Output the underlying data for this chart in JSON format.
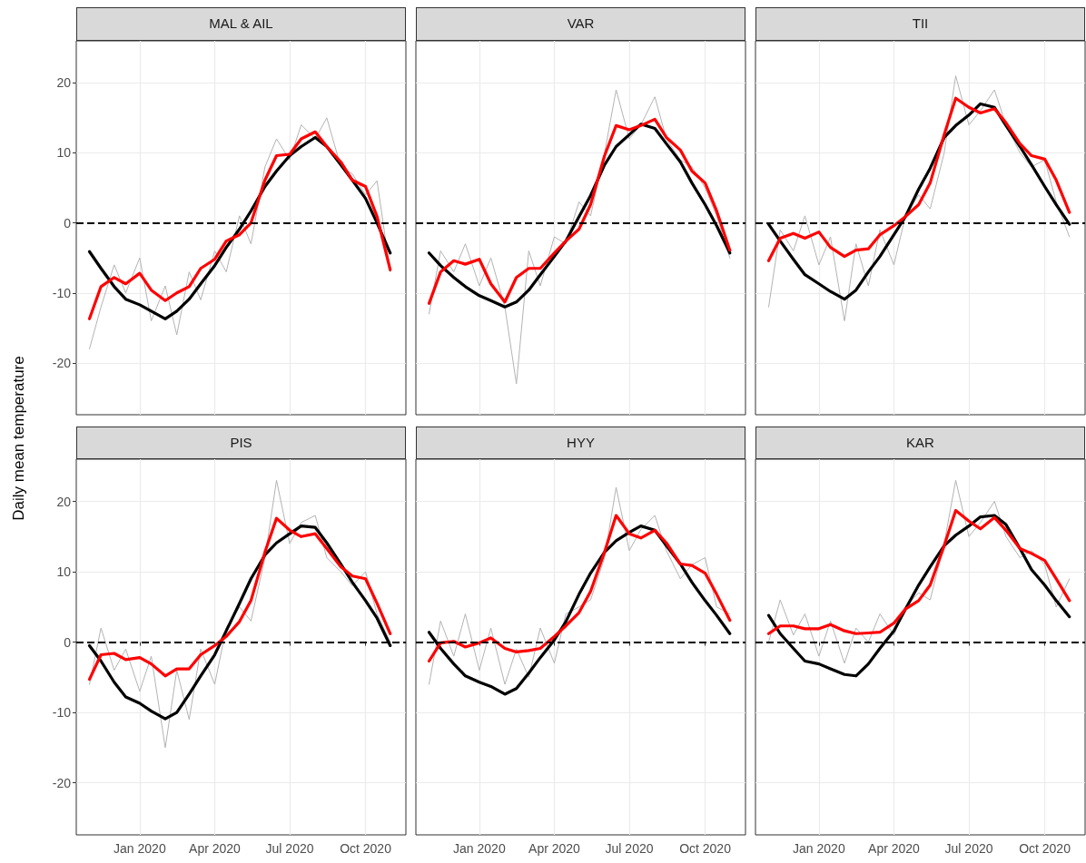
{
  "chart_data": [
    {
      "type": "line",
      "title": "MAL & AIL",
      "ylabel": "Daily mean temperature",
      "tick_labels": "y",
      "grid": true,
      "marker": "none",
      "line_style": "solid",
      "xlim": [
        "2019-10-16",
        "2020-11-19"
      ],
      "xticks": [
        {
          "value": "2020-01-01",
          "label": null
        },
        {
          "value": "2020-04-01",
          "label": null
        },
        {
          "value": "2020-07-01",
          "label": null
        },
        {
          "value": "2020-10-01",
          "label": null
        }
      ],
      "ylim": [
        -27.4,
        26
      ],
      "yticks": [
        -20,
        -10,
        0,
        10,
        20
      ],
      "ref_lines": [
        {
          "axis": "y",
          "value": 0,
          "label": null,
          "color": "#000000",
          "line_style": "dashed"
        }
      ],
      "x": [
        "2019-11-01",
        "2019-11-15",
        "2019-12-01",
        "2019-12-15",
        "2020-01-01",
        "2020-01-15",
        "2020-02-01",
        "2020-02-15",
        "2020-03-01",
        "2020-03-15",
        "2020-04-01",
        "2020-04-15",
        "2020-05-01",
        "2020-05-15",
        "2020-06-01",
        "2020-06-15",
        "2020-07-01",
        "2020-07-15",
        "2020-08-01",
        "2020-08-15",
        "2020-09-01",
        "2020-09-15",
        "2020-10-01",
        "2020-10-15",
        "2020-10-31"
      ],
      "series": [
        {
          "color": "#b3b3b3",
          "values": [
            -18,
            -12,
            -6,
            -10,
            -5,
            -14,
            -9,
            -16,
            -7,
            -11,
            -4,
            -7,
            1,
            -3,
            8,
            12,
            9,
            14,
            12,
            15,
            8,
            7,
            4,
            6,
            -7
          ]
        },
        {
          "color": "#000000",
          "values": [
            -4.1,
            -6.5,
            -9.1,
            -10.9,
            -11.7,
            -12.6,
            -13.7,
            -12.6,
            -10.9,
            -8.7,
            -6.1,
            -3.5,
            -0.9,
            1.7,
            5.2,
            7.4,
            9.6,
            10.9,
            12.2,
            10.9,
            8.3,
            6.1,
            3.5,
            0,
            -4.3
          ]
        },
        {
          "color": "#ff0000",
          "values": [
            -13.7,
            -9.1,
            -7.8,
            -8.7,
            -7.2,
            -9.6,
            -11.1,
            -10,
            -9.1,
            -6.5,
            -5.2,
            -2.6,
            -1.7,
            0,
            6.1,
            9.6,
            9.8,
            12,
            13,
            10.9,
            8.7,
            6.1,
            5.2,
            0.9,
            -6.7
          ]
        }
      ]
    },
    {
      "type": "line",
      "title": "VAR",
      "tick_labels": false,
      "grid": true,
      "marker": "none",
      "line_style": "solid",
      "xlim": [
        "2019-10-16",
        "2020-11-19"
      ],
      "xticks": [
        {
          "value": "2020-01-01",
          "label": null
        },
        {
          "value": "2020-04-01",
          "label": null
        },
        {
          "value": "2020-07-01",
          "label": null
        },
        {
          "value": "2020-10-01",
          "label": null
        }
      ],
      "ylim": [
        -27.4,
        26
      ],
      "yticks": [
        -20,
        -10,
        0,
        10,
        20
      ],
      "ref_lines": [
        {
          "axis": "y",
          "value": 0,
          "label": null,
          "color": "#000000",
          "line_style": "dashed"
        }
      ],
      "x": [
        "2019-11-01",
        "2019-11-15",
        "2019-12-01",
        "2019-12-15",
        "2020-01-01",
        "2020-01-15",
        "2020-02-01",
        "2020-02-15",
        "2020-03-01",
        "2020-03-15",
        "2020-04-01",
        "2020-04-15",
        "2020-05-01",
        "2020-05-15",
        "2020-06-01",
        "2020-06-15",
        "2020-07-01",
        "2020-07-15",
        "2020-08-01",
        "2020-08-15",
        "2020-09-01",
        "2020-09-15",
        "2020-10-01",
        "2020-10-15",
        "2020-10-31"
      ],
      "series": [
        {
          "color": "#b3b3b3",
          "values": [
            -13,
            -4,
            -7,
            -3,
            -9,
            -5,
            -12,
            -23,
            -4,
            -9,
            -2,
            -3,
            3,
            1,
            10,
            19,
            12,
            14,
            18,
            12,
            9,
            8,
            5,
            1,
            -5
          ]
        },
        {
          "color": "#000000",
          "values": [
            -4.3,
            -6.1,
            -7.8,
            -9.1,
            -10.4,
            -11.1,
            -12,
            -11.3,
            -9.6,
            -7.4,
            -4.8,
            -2.6,
            0.9,
            3.9,
            8.3,
            10.9,
            12.6,
            14.1,
            13.5,
            11.3,
            8.7,
            5.7,
            2.6,
            -0.4,
            -4.3
          ]
        },
        {
          "color": "#ff0000",
          "values": [
            -11.5,
            -7,
            -5.4,
            -5.9,
            -5.2,
            -8.7,
            -11.3,
            -7.8,
            -6.5,
            -6.5,
            -4.3,
            -2.6,
            -0.9,
            2.6,
            9.6,
            13.9,
            13.3,
            13.9,
            14.8,
            12.2,
            10.4,
            7.4,
            5.7,
            1.7,
            -3.9
          ]
        }
      ]
    },
    {
      "type": "line",
      "title": "TII",
      "tick_labels": false,
      "grid": true,
      "marker": "none",
      "line_style": "solid",
      "xlim": [
        "2019-10-16",
        "2020-11-19"
      ],
      "xticks": [
        {
          "value": "2020-01-01",
          "label": null
        },
        {
          "value": "2020-04-01",
          "label": null
        },
        {
          "value": "2020-07-01",
          "label": null
        },
        {
          "value": "2020-10-01",
          "label": null
        }
      ],
      "ylim": [
        -27.4,
        26
      ],
      "yticks": [
        -20,
        -10,
        0,
        10,
        20
      ],
      "ref_lines": [
        {
          "axis": "y",
          "value": 0,
          "label": null,
          "color": "#000000",
          "line_style": "dashed"
        }
      ],
      "x": [
        "2019-11-01",
        "2019-11-15",
        "2019-12-01",
        "2019-12-15",
        "2020-01-01",
        "2020-01-15",
        "2020-02-01",
        "2020-02-15",
        "2020-03-01",
        "2020-03-15",
        "2020-04-01",
        "2020-04-15",
        "2020-05-01",
        "2020-05-15",
        "2020-06-01",
        "2020-06-15",
        "2020-07-01",
        "2020-07-15",
        "2020-08-01",
        "2020-08-15",
        "2020-09-01",
        "2020-09-15",
        "2020-10-01",
        "2020-10-15",
        "2020-10-31"
      ],
      "series": [
        {
          "color": "#b3b3b3",
          "values": [
            -12,
            -1,
            -4,
            1,
            -6,
            -2,
            -14,
            -3,
            -9,
            -1,
            -6,
            1,
            4,
            2,
            10,
            21,
            14,
            16,
            19,
            14,
            10,
            8,
            9,
            3,
            -2
          ]
        },
        {
          "color": "#000000",
          "values": [
            -0.2,
            -2.6,
            -5.2,
            -7.4,
            -8.7,
            -9.8,
            -10.9,
            -9.6,
            -7,
            -4.8,
            -1.7,
            0.9,
            4.8,
            7.8,
            12.2,
            13.9,
            15.4,
            17,
            16.5,
            13.9,
            10.9,
            8.3,
            5.2,
            2.6,
            -0.2
          ]
        },
        {
          "color": "#ff0000",
          "values": [
            -5.4,
            -2.2,
            -1.5,
            -2.2,
            -1.3,
            -3.5,
            -4.8,
            -3.9,
            -3.7,
            -1.7,
            -0.4,
            0.9,
            2.6,
            5.7,
            12.6,
            17.8,
            16.5,
            15.7,
            16.3,
            14.3,
            11.3,
            9.6,
            9.1,
            6.1,
            1.5
          ]
        }
      ]
    },
    {
      "type": "line",
      "title": "PIS",
      "grid": true,
      "marker": "none",
      "line_style": "solid",
      "xlim": [
        "2019-10-16",
        "2020-11-19"
      ],
      "xticks": [
        {
          "value": "2020-01-01",
          "label": "Jan 2020"
        },
        {
          "value": "2020-04-01",
          "label": "Apr 2020"
        },
        {
          "value": "2020-07-01",
          "label": "Jul 2020"
        },
        {
          "value": "2020-10-01",
          "label": "Oct 2020"
        }
      ],
      "ylim": [
        -27.4,
        26
      ],
      "yticks": [
        -20,
        -10,
        0,
        10,
        20
      ],
      "ref_lines": [
        {
          "axis": "y",
          "value": 0,
          "label": null,
          "color": "#000000",
          "line_style": "dashed"
        }
      ],
      "x": [
        "2019-11-01",
        "2019-11-15",
        "2019-12-01",
        "2019-12-15",
        "2020-01-01",
        "2020-01-15",
        "2020-02-01",
        "2020-02-15",
        "2020-03-01",
        "2020-03-15",
        "2020-04-01",
        "2020-04-15",
        "2020-05-01",
        "2020-05-15",
        "2020-06-01",
        "2020-06-15",
        "2020-07-01",
        "2020-07-15",
        "2020-08-01",
        "2020-08-15",
        "2020-09-01",
        "2020-09-15",
        "2020-10-01",
        "2020-10-15",
        "2020-10-31"
      ],
      "series": [
        {
          "color": "#b3b3b3",
          "values": [
            -6,
            2,
            -4,
            -1,
            -7,
            -2,
            -15,
            -4,
            -11,
            -1,
            -6,
            2,
            5,
            3,
            12,
            23,
            14,
            17,
            18,
            12,
            10,
            8,
            10,
            4,
            0
          ]
        },
        {
          "color": "#000000",
          "values": [
            -0.5,
            -2.7,
            -5.7,
            -7.8,
            -8.7,
            -9.8,
            -10.9,
            -10,
            -7.4,
            -4.8,
            -1.8,
            1.6,
            5.5,
            9,
            12.4,
            14.1,
            15.4,
            16.5,
            16.3,
            14.1,
            11.1,
            8.5,
            5.9,
            3.4,
            -0.5
          ]
        },
        {
          "color": "#ff0000",
          "values": [
            -5.3,
            -1.8,
            -1.6,
            -2.5,
            -2.2,
            -3.1,
            -4.8,
            -3.8,
            -3.8,
            -1.8,
            -0.5,
            0.8,
            2.9,
            5.9,
            12.8,
            17.6,
            15.9,
            15,
            15.4,
            13.3,
            10.7,
            9.4,
            9,
            5.5,
            1.2
          ]
        }
      ]
    },
    {
      "type": "line",
      "title": "HYY",
      "tick_labels": "x",
      "grid": true,
      "marker": "none",
      "line_style": "solid",
      "xlim": [
        "2019-10-16",
        "2020-11-19"
      ],
      "xticks": [
        {
          "value": "2020-01-01",
          "label": "Jan 2020"
        },
        {
          "value": "2020-04-01",
          "label": "Apr 2020"
        },
        {
          "value": "2020-07-01",
          "label": "Jul 2020"
        },
        {
          "value": "2020-10-01",
          "label": "Oct 2020"
        }
      ],
      "ylim": [
        -27.4,
        26
      ],
      "yticks": [
        -20,
        -10,
        0,
        10,
        20
      ],
      "ref_lines": [
        {
          "axis": "y",
          "value": 0,
          "label": null,
          "color": "#000000",
          "line_style": "dashed"
        }
      ],
      "x": [
        "2019-11-01",
        "2019-11-15",
        "2019-12-01",
        "2019-12-15",
        "2020-01-01",
        "2020-01-15",
        "2020-02-01",
        "2020-02-15",
        "2020-03-01",
        "2020-03-15",
        "2020-04-01",
        "2020-04-15",
        "2020-05-01",
        "2020-05-15",
        "2020-06-01",
        "2020-06-15",
        "2020-07-01",
        "2020-07-15",
        "2020-08-01",
        "2020-08-15",
        "2020-09-01",
        "2020-09-15",
        "2020-10-01",
        "2020-10-15",
        "2020-10-31"
      ],
      "series": [
        {
          "color": "#b3b3b3",
          "values": [
            -6,
            3,
            -2,
            4,
            -4,
            2,
            -6,
            -1,
            -5,
            2,
            -3,
            4,
            5,
            6,
            12,
            22,
            13,
            16,
            18,
            13,
            9,
            11,
            12,
            5,
            4
          ]
        },
        {
          "color": "#000000",
          "values": [
            1.4,
            -0.9,
            -3.1,
            -4.8,
            -5.7,
            -6.3,
            -7.4,
            -6.6,
            -4.4,
            -2.2,
            0.3,
            2.9,
            6.8,
            9.8,
            12.8,
            14.4,
            15.6,
            16.5,
            15.9,
            13.7,
            11.1,
            8.5,
            5.9,
            3.8,
            1.2
          ]
        },
        {
          "color": "#ff0000",
          "values": [
            -2.7,
            -0.1,
            0.1,
            -0.7,
            -0.1,
            0.6,
            -0.9,
            -1.4,
            -1.2,
            -0.9,
            0.8,
            2.3,
            4.2,
            7.2,
            12.8,
            18,
            15.4,
            14.8,
            15.9,
            14.1,
            11.1,
            10.9,
            9.8,
            6.8,
            3.1
          ]
        }
      ]
    },
    {
      "type": "line",
      "title": "KAR",
      "tick_labels": "x",
      "grid": true,
      "marker": "none",
      "line_style": "solid",
      "xlim": [
        "2019-10-16",
        "2020-11-19"
      ],
      "xticks": [
        {
          "value": "2020-01-01",
          "label": "Jan 2020"
        },
        {
          "value": "2020-04-01",
          "label": "Apr 2020"
        },
        {
          "value": "2020-07-01",
          "label": "Jul 2020"
        },
        {
          "value": "2020-10-01",
          "label": "Oct 2020"
        }
      ],
      "ylim": [
        -27.4,
        26
      ],
      "yticks": [
        -20,
        -10,
        0,
        10,
        20
      ],
      "ref_lines": [
        {
          "axis": "y",
          "value": 0,
          "label": null,
          "color": "#000000",
          "line_style": "dashed"
        }
      ],
      "x": [
        "2019-11-01",
        "2019-11-15",
        "2019-12-01",
        "2019-12-15",
        "2020-01-01",
        "2020-01-15",
        "2020-02-01",
        "2020-02-15",
        "2020-03-01",
        "2020-03-15",
        "2020-04-01",
        "2020-04-15",
        "2020-05-01",
        "2020-05-15",
        "2020-06-01",
        "2020-06-15",
        "2020-07-01",
        "2020-07-15",
        "2020-08-01",
        "2020-08-15",
        "2020-09-01",
        "2020-09-15",
        "2020-10-01",
        "2020-10-15",
        "2020-10-31"
      ],
      "series": [
        {
          "color": "#b3b3b3",
          "values": [
            0,
            6,
            1,
            4,
            -2,
            3,
            -3,
            2,
            0,
            4,
            1,
            5,
            7,
            6,
            14,
            23,
            15,
            17,
            20,
            15,
            12,
            13,
            11,
            5,
            9
          ]
        },
        {
          "color": "#000000",
          "values": [
            3.8,
            1.2,
            -0.9,
            -2.7,
            -3.1,
            -3.8,
            -4.6,
            -4.8,
            -3.1,
            -0.9,
            1.6,
            4.7,
            8.1,
            10.7,
            13.7,
            15.2,
            16.5,
            17.8,
            18,
            16.7,
            13.3,
            10.3,
            8.1,
            5.9,
            3.6
          ]
        },
        {
          "color": "#ff0000",
          "values": [
            1.2,
            2.3,
            2.3,
            1.9,
            1.9,
            2.5,
            1.6,
            1.2,
            1.3,
            1.4,
            2.7,
            4.7,
            5.9,
            8.1,
            13.7,
            18.7,
            17.2,
            16.1,
            17.7,
            15.9,
            13.3,
            12.6,
            11.6,
            9,
            5.9
          ]
        }
      ]
    }
  ]
}
